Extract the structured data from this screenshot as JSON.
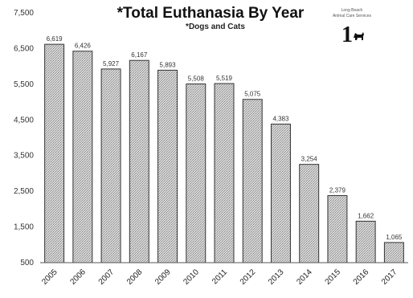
{
  "logo": {
    "line1": "Long Beach",
    "line2": "Animal Care Services",
    "numeral": "1"
  },
  "chart_data": {
    "type": "bar",
    "title": "*Total Euthanasia By Year",
    "subtitle": "*Dogs and Cats",
    "categories": [
      "2005",
      "2006",
      "2007",
      "2008",
      "2009",
      "2010",
      "2011",
      "2012",
      "2013",
      "2014",
      "2015",
      "2016",
      "2017"
    ],
    "values": [
      6619,
      6426,
      5927,
      6167,
      5893,
      5508,
      5519,
      5075,
      4383,
      3254,
      2379,
      1662,
      1065
    ],
    "value_labels": [
      "6,619",
      "6,426",
      "5,927",
      "6,167",
      "5,893",
      "5,508",
      "5,519",
      "5,075",
      "4,383",
      "3,254",
      "2,379",
      "1,662",
      "1,065"
    ],
    "ylim": [
      500,
      7500
    ],
    "yticks": [
      500,
      1500,
      2500,
      3500,
      4500,
      5500,
      6500,
      7500
    ],
    "ytick_labels": [
      "500",
      "1,500",
      "2,500",
      "3,500",
      "4,500",
      "5,500",
      "6,500",
      "7,500"
    ],
    "xlabel": "",
    "ylabel": "",
    "grid": false,
    "bar_color": "#c8c8c8",
    "bar_edge_color": "#333333"
  }
}
